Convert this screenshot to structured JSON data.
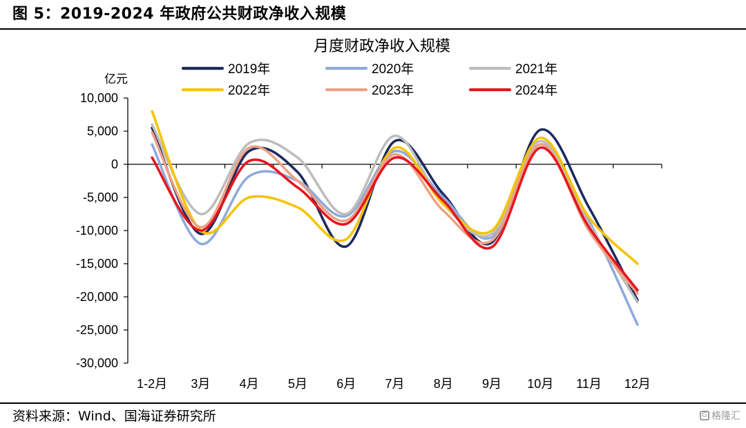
{
  "figure_title": "图 5：2019-2024 年政府公共财政净收入规模",
  "source_text": "资料来源：Wind、国海证券研究所",
  "watermark_text": "格隆汇",
  "chart_data": {
    "type": "line",
    "title": "月度财政净收入规模",
    "ylabel": "亿元",
    "xlabel": "",
    "ylim": [
      -30000,
      10000
    ],
    "yticks": [
      10000,
      5000,
      0,
      -5000,
      -10000,
      -15000,
      -20000,
      -25000,
      -30000
    ],
    "ytick_labels": [
      "10,000",
      "5,000",
      "0",
      "-5,000",
      "-10,000",
      "-15,000",
      "-20,000",
      "-25,000",
      "-30,000"
    ],
    "categories": [
      "1-2月",
      "3月",
      "4月",
      "5月",
      "6月",
      "7月",
      "8月",
      "9月",
      "10月",
      "11月",
      "12月"
    ],
    "legend_placement": "top",
    "series": [
      {
        "name": "2019年",
        "color": "#1b2a5e",
        "values": [
          5500,
          -10500,
          2000,
          -1200,
          -12400,
          3500,
          -4500,
          -11800,
          5200,
          -6500,
          -20500
        ]
      },
      {
        "name": "2020年",
        "color": "#8eaadc",
        "values": [
          3000,
          -12000,
          -1800,
          -2500,
          -7800,
          2000,
          -5000,
          -11000,
          3000,
          -8500,
          -24200
        ]
      },
      {
        "name": "2021年",
        "color": "#bdbdbd",
        "values": [
          6000,
          -7500,
          3200,
          1000,
          -7500,
          4300,
          -6000,
          -10500,
          3500,
          -9000,
          -20800
        ]
      },
      {
        "name": "2022年",
        "color": "#f5c300",
        "values": [
          8000,
          -10000,
          -5000,
          -6500,
          -11300,
          2500,
          -6000,
          -10000,
          4000,
          -8000,
          -15000
        ]
      },
      {
        "name": "2023年",
        "color": "#eda184",
        "values": [
          4800,
          -9500,
          2500,
          -2500,
          -8500,
          1500,
          -7000,
          -11500,
          3000,
          -10000,
          -19500
        ]
      },
      {
        "name": "2024年",
        "color": "#e8141e",
        "values": [
          1000,
          -10000,
          500,
          -3500,
          -9000,
          1000,
          -5500,
          -12500,
          2500,
          -9500,
          -19000
        ]
      }
    ]
  }
}
